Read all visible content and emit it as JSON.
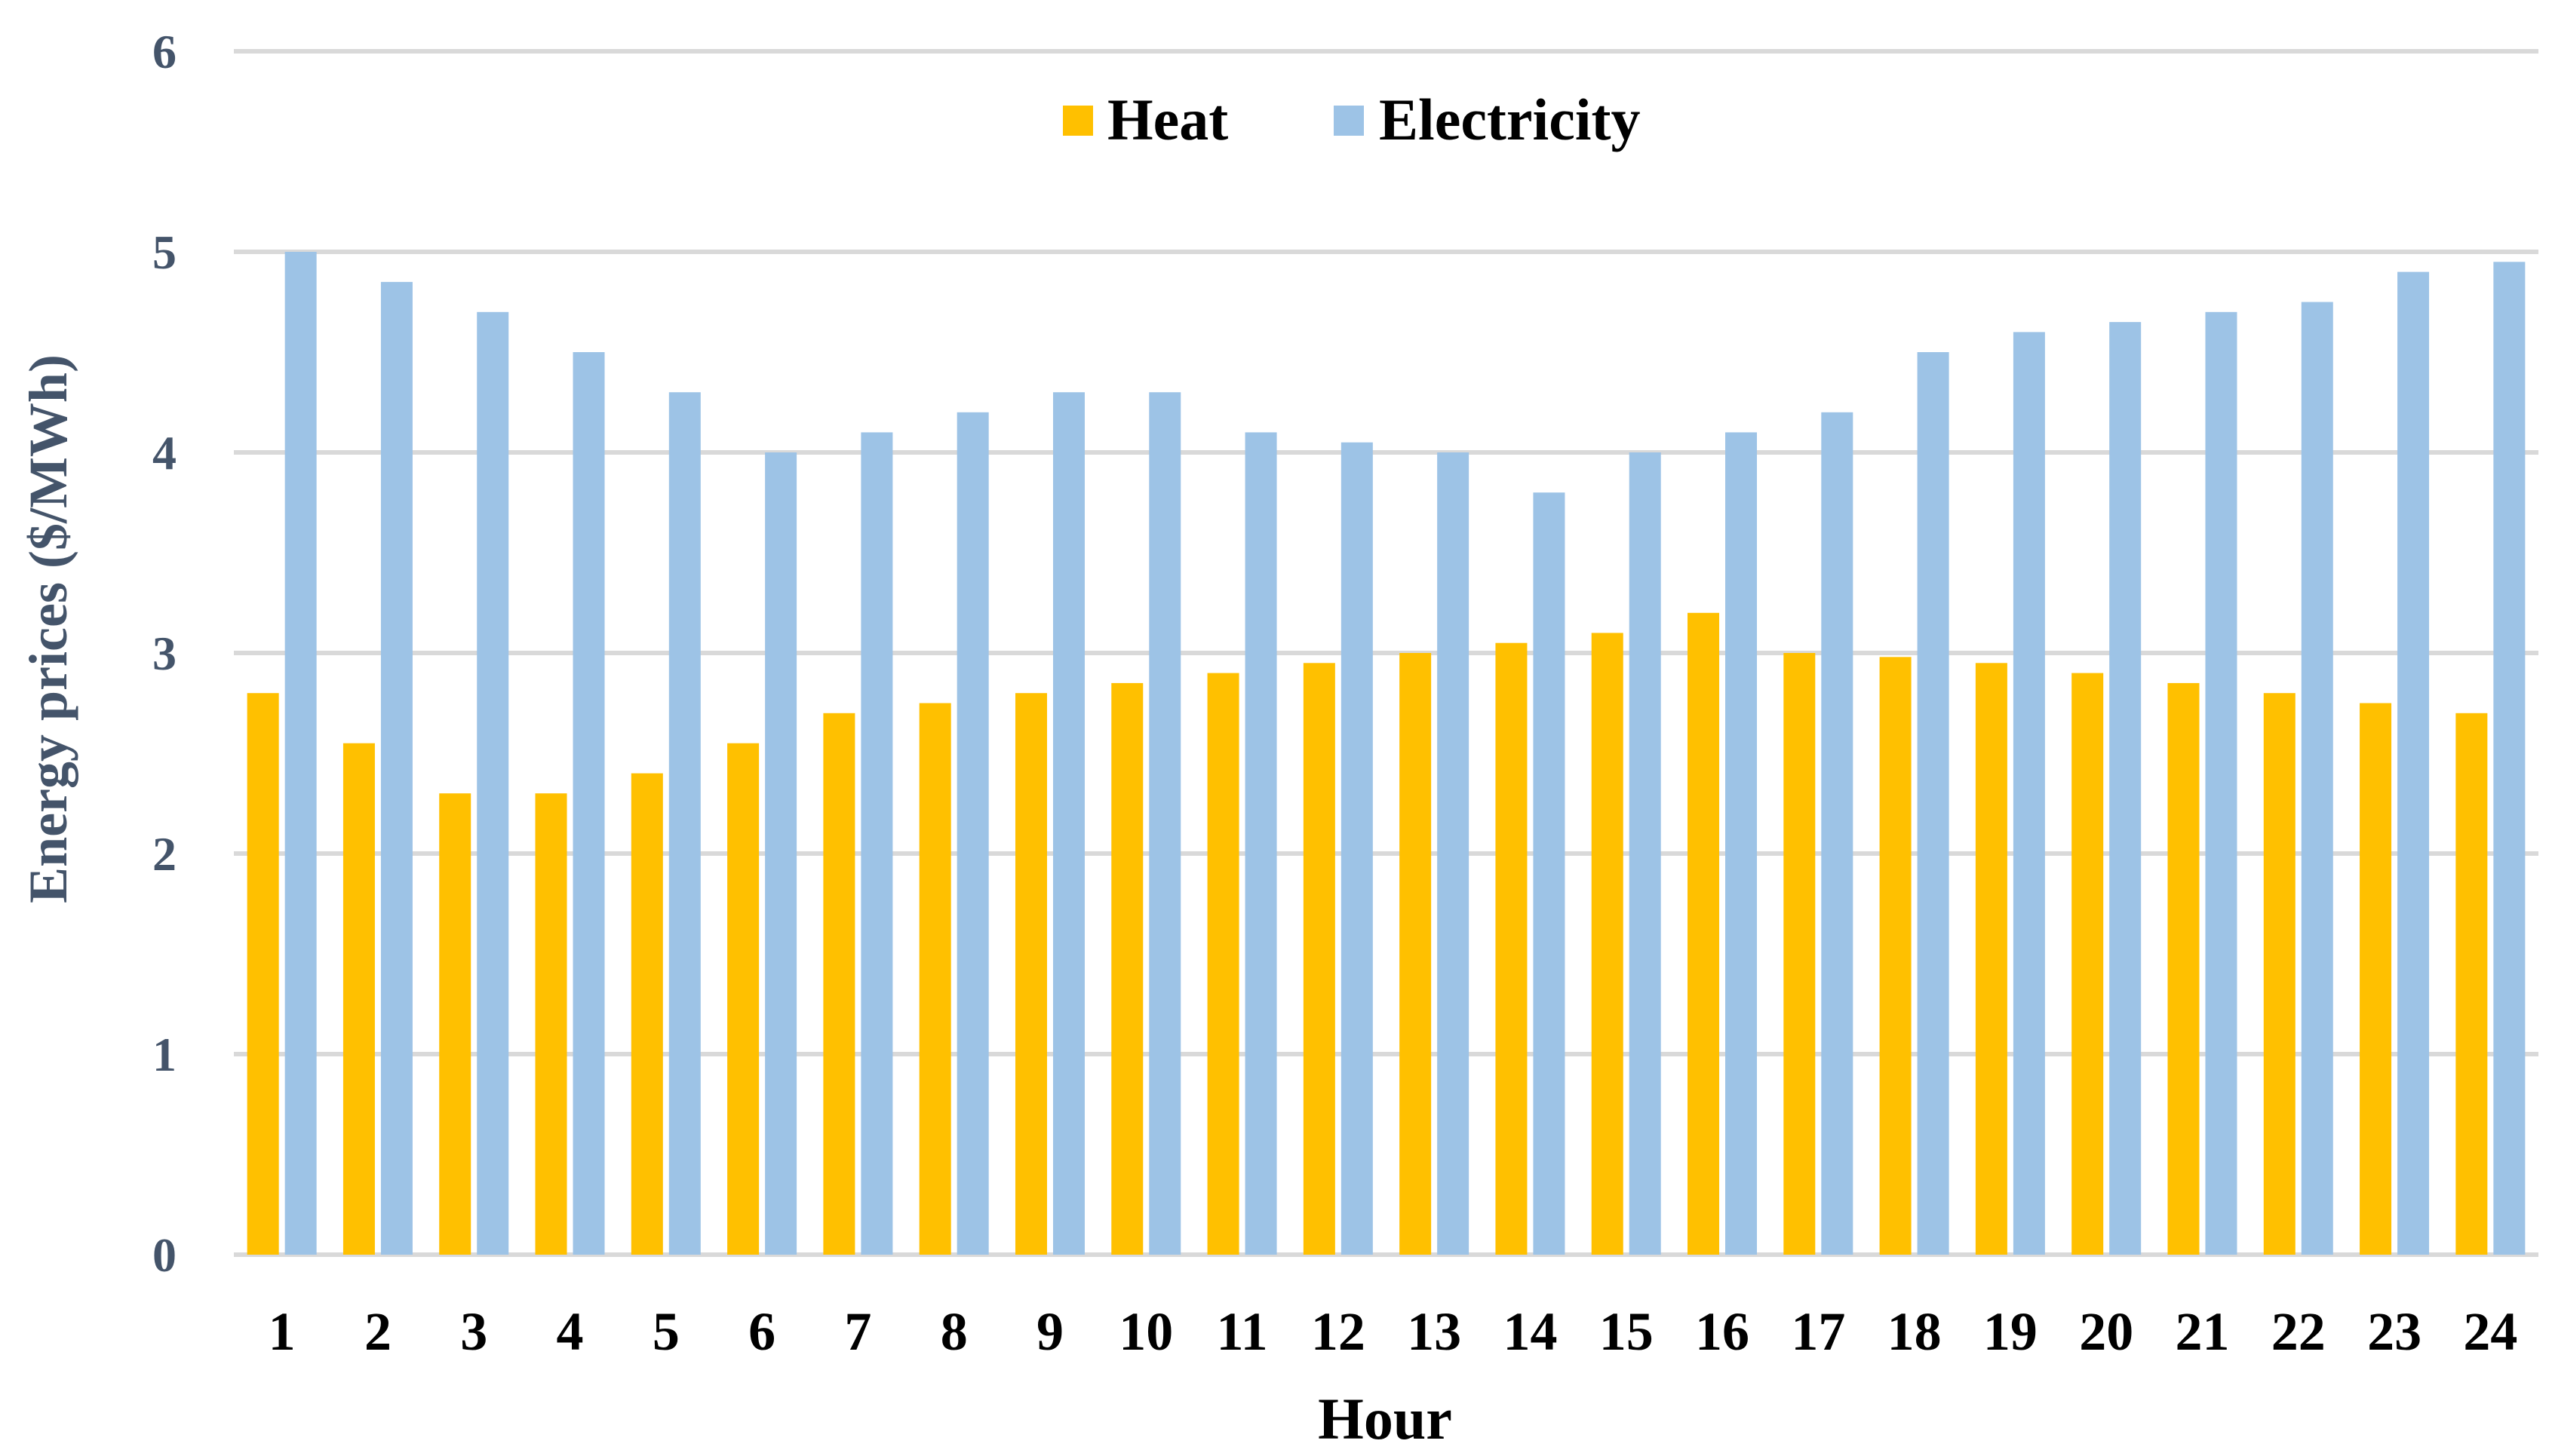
{
  "chart_data": {
    "type": "bar",
    "categories": [
      "1",
      "2",
      "3",
      "4",
      "5",
      "6",
      "7",
      "8",
      "9",
      "10",
      "11",
      "12",
      "13",
      "14",
      "15",
      "16",
      "17",
      "18",
      "19",
      "20",
      "21",
      "22",
      "23",
      "24"
    ],
    "series": [
      {
        "name": "Heat",
        "color": "#FFC000",
        "values": [
          2.8,
          2.55,
          2.3,
          2.3,
          2.4,
          2.55,
          2.7,
          2.75,
          2.8,
          2.85,
          2.9,
          2.95,
          3.0,
          3.05,
          3.1,
          3.2,
          3.0,
          2.98,
          2.95,
          2.9,
          2.85,
          2.8,
          2.75,
          2.7
        ]
      },
      {
        "name": "Electricity",
        "color": "#9DC3E6",
        "values": [
          5.0,
          4.85,
          4.7,
          4.5,
          4.3,
          4.0,
          4.1,
          4.2,
          4.3,
          4.3,
          4.1,
          4.05,
          4.0,
          3.8,
          4.0,
          4.1,
          4.2,
          4.5,
          4.6,
          4.65,
          4.7,
          4.75,
          4.9,
          4.95
        ]
      }
    ],
    "xlabel": "Hour",
    "ylabel": "Energy prices ($/MWh)",
    "ylim": [
      0,
      6
    ],
    "yticks": [
      "0",
      "1",
      "2",
      "3",
      "4",
      "5",
      "6"
    ],
    "grid": true,
    "legend_position": "top-center"
  }
}
